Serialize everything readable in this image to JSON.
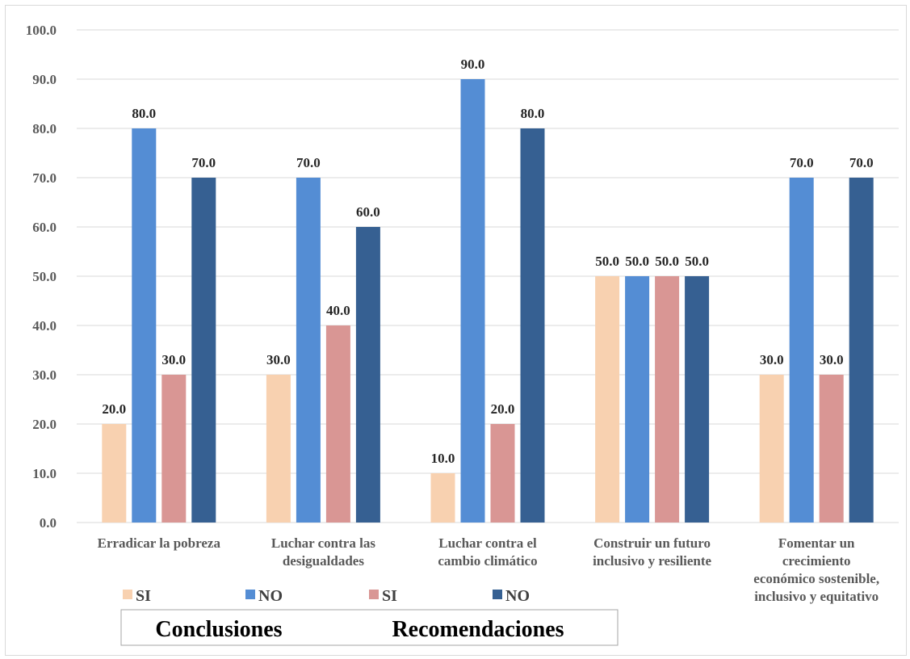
{
  "chart_data": {
    "type": "bar",
    "categories": [
      [
        "Erradicar la pobreza"
      ],
      [
        "Luchar contra las",
        "desigualdades"
      ],
      [
        "Luchar contra el",
        "cambio climático"
      ],
      [
        "Construir un futuro",
        "inclusivo y resiliente"
      ],
      [
        "Fomentar un",
        "crecimiento",
        "económico sostenible,",
        "inclusivo y equitativo"
      ]
    ],
    "series": [
      {
        "name": "SI",
        "group": "Conclusiones",
        "color": "#f8d1b0",
        "values": [
          20.0,
          30.0,
          10.0,
          50.0,
          30.0
        ]
      },
      {
        "name": "NO",
        "group": "Conclusiones",
        "color": "#548dd4",
        "values": [
          80.0,
          70.0,
          90.0,
          50.0,
          70.0
        ]
      },
      {
        "name": "SI",
        "group": "Recomendaciones",
        "color": "#d99694",
        "values": [
          30.0,
          40.0,
          20.0,
          50.0,
          30.0
        ]
      },
      {
        "name": "NO",
        "group": "Recomendaciones",
        "color": "#366092",
        "values": [
          70.0,
          60.0,
          80.0,
          50.0,
          70.0
        ]
      }
    ],
    "ylim": [
      0,
      100
    ],
    "yticks": [
      "0.0",
      "10.0",
      "20.0",
      "30.0",
      "40.0",
      "50.0",
      "60.0",
      "70.0",
      "80.0",
      "90.0",
      "100.0"
    ],
    "grid": true,
    "legend_position": "bottom-left",
    "legend_groups": [
      "Conclusiones",
      "Recomendaciones"
    ]
  }
}
